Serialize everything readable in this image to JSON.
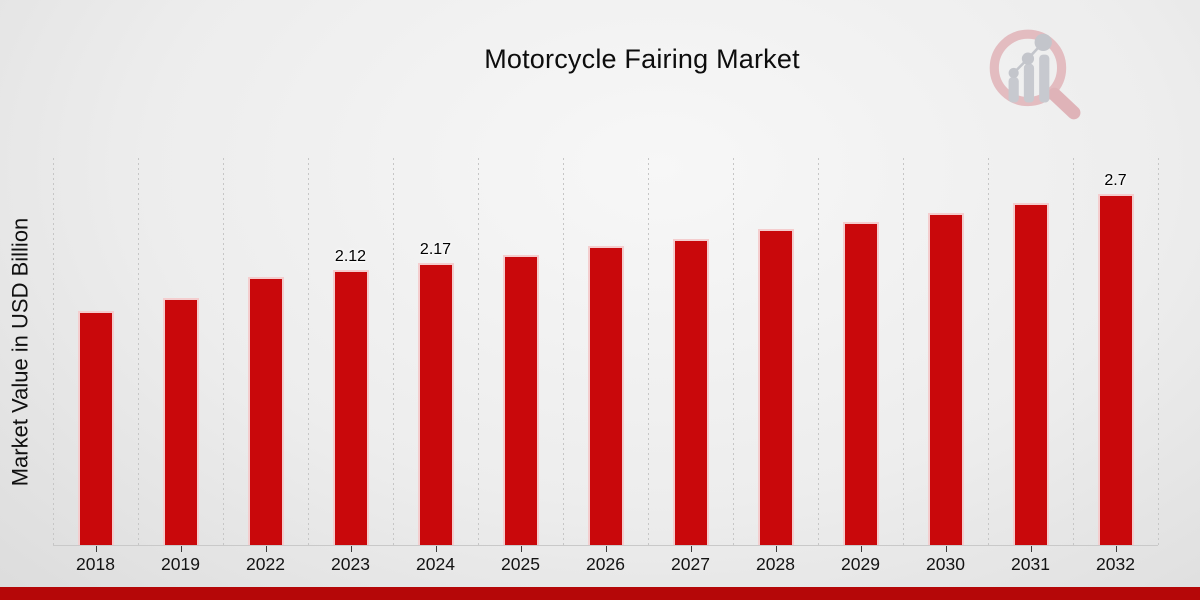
{
  "header": {
    "title": "Motorcycle Fairing Market"
  },
  "watermark": {
    "icon": "magnifier-bar-chart-logo",
    "ring_color": "#e3bcc0",
    "bars_color": "#c7c9cf"
  },
  "chart_data": {
    "type": "bar",
    "title": "Motorcycle Fairing Market",
    "xlabel": "",
    "ylabel": "Market Value in USD Billion",
    "categories": [
      "2018",
      "2019",
      "2022",
      "2023",
      "2024",
      "2025",
      "2026",
      "2027",
      "2028",
      "2029",
      "2030",
      "2031",
      "2032"
    ],
    "values": [
      1.8,
      1.9,
      2.06,
      2.12,
      2.17,
      2.23,
      2.3,
      2.36,
      2.43,
      2.49,
      2.56,
      2.63,
      2.7
    ],
    "value_labels": {
      "2023": "2.12",
      "2024": "2.17",
      "2032": "2.7"
    },
    "ylim": [
      0,
      2.98
    ],
    "grid": "vertical-dashed",
    "legend": "none",
    "bar_color": "#c9080b",
    "tick_color": "#3a3a3a",
    "gridline_color": "#c6c6c6"
  },
  "footer": {
    "accent_color": "#b50708"
  }
}
